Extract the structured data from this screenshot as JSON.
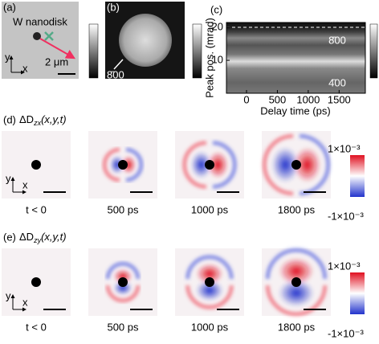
{
  "panel_a": {
    "label": "(a)",
    "annotation": "W nanodisk",
    "axis_y": "y",
    "axis_x": "x",
    "scale_bar": "2 μm"
  },
  "panel_b": {
    "label": "(b)",
    "annotation": "8̄00"
  },
  "panel_c": {
    "label": "(c)",
    "y_label": "Peak pos. (mrad)",
    "x_label": "Delay time (ps)",
    "xlim": [
      -325,
      1925
    ],
    "xticks": [
      0,
      500,
      1000,
      1500
    ],
    "ylim": [
      0,
      21.5
    ],
    "yticks": [
      10,
      20
    ],
    "peak_labels": [
      "8̄00",
      "4̄00"
    ]
  },
  "panel_d": {
    "label": "(d)",
    "title_main": "ΔD",
    "title_sub": "zx",
    "title_args": "(x,y,t)",
    "axis_y": "y",
    "axis_x": "x",
    "frames": [
      "t < 0",
      "500 ps",
      "1000 ps",
      "1800 ps"
    ],
    "colorbar_max": "1×10⁻³",
    "colorbar_min": "-1×10⁻³"
  },
  "panel_e": {
    "label": "(e)",
    "title_main": "ΔD",
    "title_sub": "zy",
    "title_args": "(x,y,t)",
    "axis_y": "y",
    "axis_x": "x",
    "frames": [
      "t < 0",
      "500 ps",
      "1000 ps",
      "1800 ps"
    ],
    "colorbar_max": "1×10⁻³",
    "colorbar_min": "-1×10⁻³"
  }
}
